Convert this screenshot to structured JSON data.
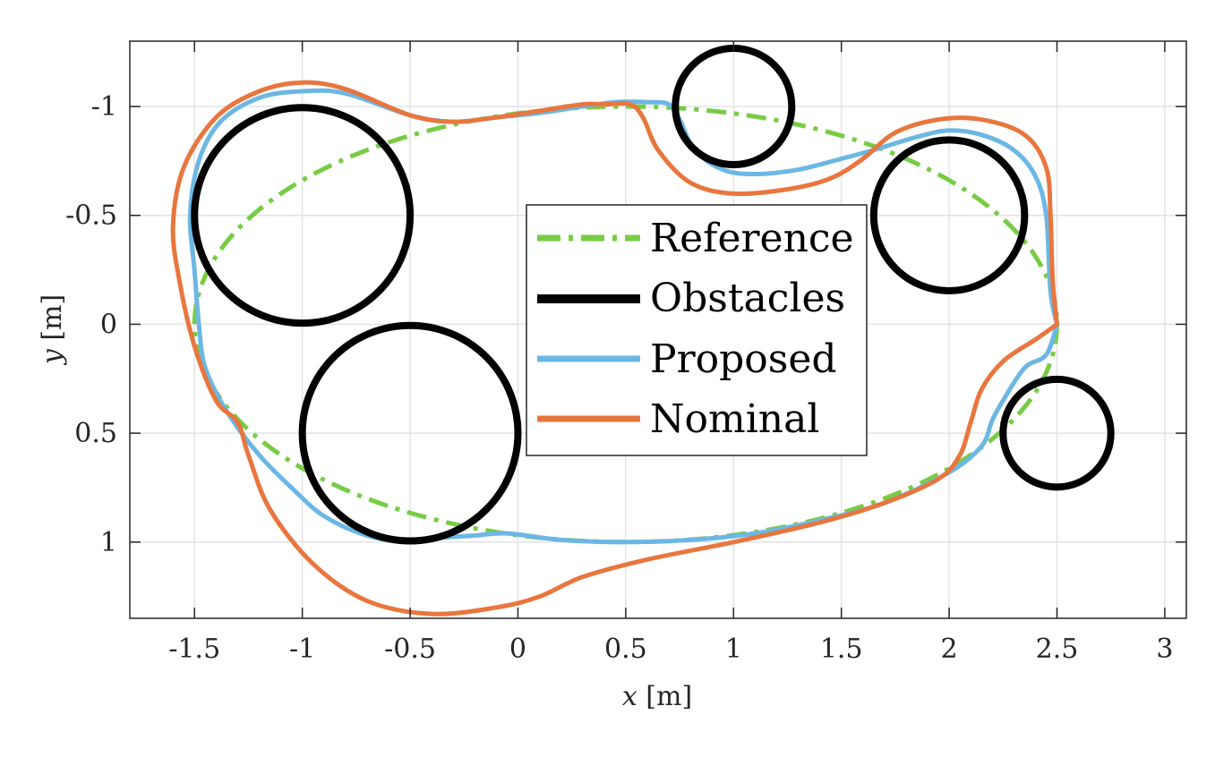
{
  "chart_data": {
    "type": "line",
    "title": "",
    "xlabel": {
      "var": "x",
      "unit": "[m]"
    },
    "ylabel": {
      "var": "y",
      "unit": "[m]"
    },
    "xlim": [
      -1.8,
      3.1
    ],
    "ylim": [
      1.35,
      -1.3
    ],
    "y_axis_reversed": true,
    "grid": true,
    "legend_position": "center",
    "xticks": [
      -1.5,
      -1,
      -0.5,
      0,
      0.5,
      1,
      1.5,
      2,
      2.5,
      3
    ],
    "xtick_labels": [
      "-1.5",
      "-1",
      "-0.5",
      "0",
      "0.5",
      "1",
      "1.5",
      "2",
      "2.5",
      "3"
    ],
    "yticks": [
      -1,
      -0.5,
      0,
      0.5,
      1
    ],
    "ytick_labels": [
      "-1",
      "-0.5",
      "0",
      "0.5",
      "1"
    ],
    "colors": {
      "reference": "#77cc44",
      "obstacles": "#000000",
      "proposed": "#6cb7e4",
      "nominal": "#e8763e"
    },
    "legend": [
      {
        "key": "reference",
        "label": "Reference"
      },
      {
        "key": "obstacles",
        "label": "Obstacles"
      },
      {
        "key": "proposed",
        "label": "Proposed"
      },
      {
        "key": "nominal",
        "label": "Nominal"
      }
    ],
    "reference": {
      "shape": "ellipse",
      "center": [
        0.5,
        0
      ],
      "radii": [
        2.0,
        1.0
      ]
    },
    "obstacles": [
      {
        "center": [
          -1.0,
          -0.5
        ],
        "radius": 0.5
      },
      {
        "center": [
          -0.5,
          0.5
        ],
        "radius": 0.5
      },
      {
        "center": [
          1.0,
          -1.0
        ],
        "radius": 0.27
      },
      {
        "center": [
          2.0,
          -0.5
        ],
        "radius": 0.35
      },
      {
        "center": [
          2.5,
          0.5
        ],
        "radius": 0.25
      }
    ],
    "series": [
      {
        "key": "proposed",
        "name": "Proposed",
        "points": [
          [
            2.5,
            0.0
          ],
          [
            2.47,
            -0.15
          ],
          [
            2.45,
            -0.5
          ],
          [
            2.4,
            -0.68
          ],
          [
            2.3,
            -0.8
          ],
          [
            2.15,
            -0.87
          ],
          [
            2.0,
            -0.89
          ],
          [
            1.85,
            -0.86
          ],
          [
            1.65,
            -0.8
          ],
          [
            1.5,
            -0.76
          ],
          [
            1.3,
            -0.71
          ],
          [
            1.1,
            -0.69
          ],
          [
            0.95,
            -0.71
          ],
          [
            0.82,
            -0.8
          ],
          [
            0.75,
            -0.94
          ],
          [
            0.7,
            -1.01
          ],
          [
            0.6,
            -1.02
          ],
          [
            0.45,
            -1.02
          ],
          [
            0.3,
            -1.0
          ],
          [
            0.1,
            -0.97
          ],
          [
            -0.1,
            -0.95
          ],
          [
            -0.3,
            -0.93
          ],
          [
            -0.5,
            -0.96
          ],
          [
            -0.8,
            -1.06
          ],
          [
            -1.0,
            -1.07
          ],
          [
            -1.2,
            -1.04
          ],
          [
            -1.38,
            -0.93
          ],
          [
            -1.48,
            -0.75
          ],
          [
            -1.52,
            -0.5
          ],
          [
            -1.5,
            -0.25
          ],
          [
            -1.48,
            0.0
          ],
          [
            -1.45,
            0.2
          ],
          [
            -1.35,
            0.4
          ],
          [
            -1.2,
            0.6
          ],
          [
            -1.05,
            0.75
          ],
          [
            -0.9,
            0.88
          ],
          [
            -0.7,
            0.97
          ],
          [
            -0.5,
            1.0
          ],
          [
            -0.35,
            0.98
          ],
          [
            -0.2,
            0.97
          ],
          [
            -0.05,
            0.96
          ],
          [
            0.2,
            0.99
          ],
          [
            0.5,
            1.0
          ],
          [
            0.8,
            0.99
          ],
          [
            1.1,
            0.96
          ],
          [
            1.4,
            0.9
          ],
          [
            1.7,
            0.82
          ],
          [
            2.0,
            0.68
          ],
          [
            2.15,
            0.56
          ],
          [
            2.2,
            0.44
          ],
          [
            2.25,
            0.35
          ],
          [
            2.35,
            0.2
          ],
          [
            2.45,
            0.14
          ],
          [
            2.5,
            0.0
          ]
        ]
      },
      {
        "key": "nominal",
        "name": "Nominal",
        "points": [
          [
            2.5,
            0.0
          ],
          [
            2.48,
            -0.2
          ],
          [
            2.47,
            -0.5
          ],
          [
            2.45,
            -0.72
          ],
          [
            2.35,
            -0.87
          ],
          [
            2.15,
            -0.94
          ],
          [
            1.95,
            -0.94
          ],
          [
            1.75,
            -0.88
          ],
          [
            1.6,
            -0.76
          ],
          [
            1.45,
            -0.67
          ],
          [
            1.25,
            -0.62
          ],
          [
            1.0,
            -0.6
          ],
          [
            0.8,
            -0.65
          ],
          [
            0.65,
            -0.8
          ],
          [
            0.58,
            -0.95
          ],
          [
            0.52,
            -1.01
          ],
          [
            0.4,
            -1.01
          ],
          [
            0.3,
            -1.01
          ],
          [
            0.1,
            -0.98
          ],
          [
            -0.1,
            -0.95
          ],
          [
            -0.3,
            -0.93
          ],
          [
            -0.5,
            -0.96
          ],
          [
            -0.8,
            -1.08
          ],
          [
            -1.0,
            -1.11
          ],
          [
            -1.2,
            -1.07
          ],
          [
            -1.4,
            -0.95
          ],
          [
            -1.55,
            -0.72
          ],
          [
            -1.6,
            -0.45
          ],
          [
            -1.57,
            -0.2
          ],
          [
            -1.5,
            0.1
          ],
          [
            -1.4,
            0.35
          ],
          [
            -1.3,
            0.45
          ],
          [
            -1.25,
            0.6
          ],
          [
            -1.15,
            0.85
          ],
          [
            -0.95,
            1.1
          ],
          [
            -0.7,
            1.27
          ],
          [
            -0.4,
            1.33
          ],
          [
            -0.1,
            1.3
          ],
          [
            0.1,
            1.25
          ],
          [
            0.3,
            1.16
          ],
          [
            0.6,
            1.08
          ],
          [
            1.0,
            1.0
          ],
          [
            1.4,
            0.91
          ],
          [
            1.7,
            0.82
          ],
          [
            1.95,
            0.71
          ],
          [
            2.05,
            0.6
          ],
          [
            2.1,
            0.45
          ],
          [
            2.15,
            0.3
          ],
          [
            2.25,
            0.17
          ],
          [
            2.4,
            0.07
          ],
          [
            2.5,
            0.0
          ]
        ]
      }
    ]
  }
}
